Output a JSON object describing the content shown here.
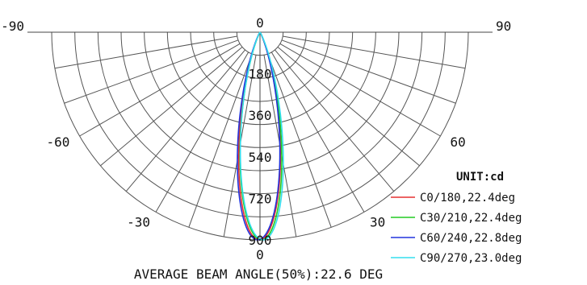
{
  "chart_data": {
    "type": "polar",
    "footer": "AVERAGE BEAM ANGLE(50%):22.6 DEG",
    "unit_label": "UNIT:cd",
    "radial_ticks": [
      0,
      180,
      360,
      540,
      720,
      900
    ],
    "radial_max": 900,
    "angle_labels": [
      {
        "angle": -90,
        "text": "-90"
      },
      {
        "angle": -60,
        "text": "-60"
      },
      {
        "angle": -30,
        "text": "-30"
      },
      {
        "angle": 0,
        "text": "0"
      },
      {
        "angle": 30,
        "text": "30"
      },
      {
        "angle": 60,
        "text": "60"
      },
      {
        "angle": 90,
        "text": "90"
      }
    ],
    "series": [
      {
        "name": "C0/180,22.4deg",
        "color": "#e53030",
        "beam_angle": 22.4,
        "peak": 900
      },
      {
        "name": "C30/210,22.4deg",
        "color": "#22cc22",
        "beam_angle": 22.4,
        "peak": 900
      },
      {
        "name": "C60/240,22.8deg",
        "color": "#2233dd",
        "beam_angle": 22.8,
        "peak": 900
      },
      {
        "name": "C90/270,23.0deg",
        "color": "#33ddee",
        "beam_angle": 23.0,
        "peak": 900
      }
    ]
  }
}
